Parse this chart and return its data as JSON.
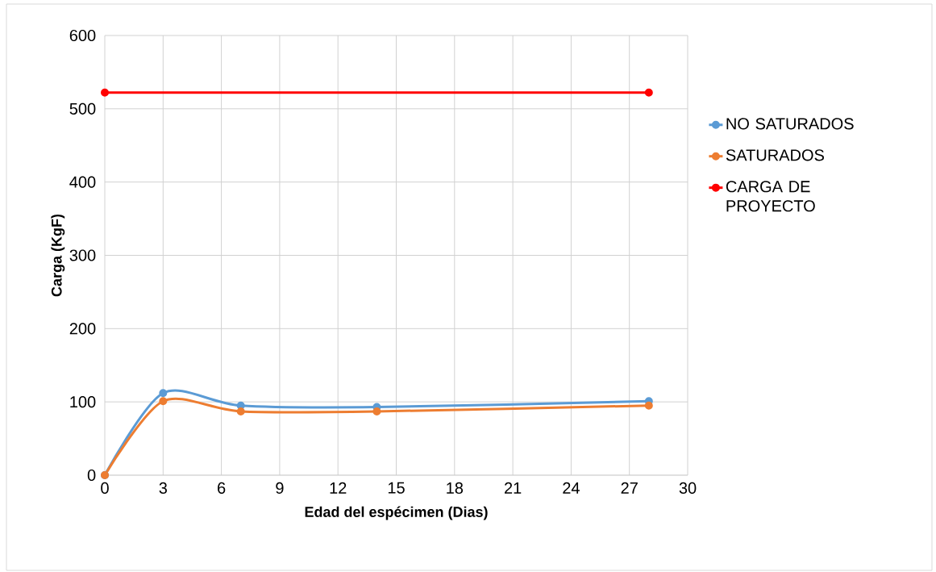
{
  "chart_data": {
    "type": "line",
    "xlabel": "Edad del espécimen (Dias)",
    "ylabel": "Carga (KgF)",
    "x": [
      0,
      3,
      7,
      14,
      28
    ],
    "series": [
      {
        "name": "NO SATURADOS",
        "color": "#5b9bd5",
        "values": [
          0,
          112,
          95,
          93,
          101
        ]
      },
      {
        "name": "SATURADOS",
        "color": "#ed7d31",
        "values": [
          0,
          101,
          87,
          87,
          95
        ]
      },
      {
        "name": "CARGA DE PROYECTO",
        "color": "#ff0000",
        "x": [
          0,
          28
        ],
        "values": [
          522,
          522
        ]
      }
    ],
    "xlim": [
      0,
      30
    ],
    "xticks": [
      0,
      3,
      6,
      9,
      12,
      15,
      18,
      21,
      24,
      27,
      30
    ],
    "ylim": [
      0,
      600
    ],
    "yticks": [
      0,
      100,
      200,
      300,
      400,
      500,
      600
    ],
    "grid": true,
    "legend": "right",
    "marker": "circle",
    "line_style": "solid"
  }
}
